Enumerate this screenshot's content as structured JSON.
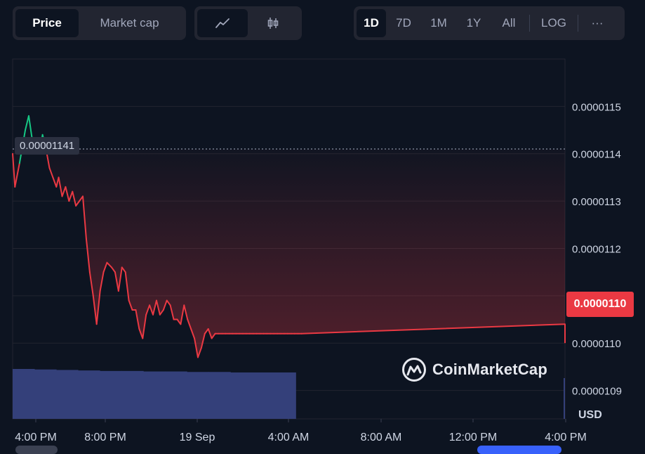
{
  "toolbar": {
    "metric_tabs": [
      {
        "label": "Price",
        "active": true
      },
      {
        "label": "Market cap",
        "active": false
      }
    ],
    "chart_style_buttons": [
      {
        "icon": "line-chart-icon",
        "active": true
      },
      {
        "icon": "candlestick-icon",
        "active": false
      }
    ],
    "ranges": [
      "1D",
      "7D",
      "1M",
      "1Y",
      "All"
    ],
    "active_range": "1D",
    "log_label": "LOG",
    "more_label": "···"
  },
  "overlay": {
    "hover_value": "0.00001141",
    "current_price": "0.0000110",
    "currency": "USD",
    "watermark": "CoinMarketCap"
  },
  "colors": {
    "down": "#ea3943",
    "up": "#16c784",
    "volume": "#34407a",
    "grid": "#222531",
    "background": "#0d1421"
  },
  "chart_data": {
    "type": "line",
    "title": "",
    "xlabel": "",
    "ylabel": "",
    "y_ticks": [
      "0.0000115",
      "0.0000114",
      "0.0000113",
      "0.0000112",
      "0.0000111",
      "0.0000110",
      "0.0000109"
    ],
    "y_tick_values": [
      1.15e-05,
      1.14e-05,
      1.13e-05,
      1.12e-05,
      1.11e-05,
      1.1e-05,
      1.09e-05
    ],
    "ylim": [
      1.084e-05,
      1.16e-05
    ],
    "x_ticks": [
      "4:00 PM",
      "8:00 PM",
      "19 Sep",
      "4:00 AM",
      "8:00 AM",
      "12:00 PM",
      "4:00 PM"
    ],
    "x_tick_hours": [
      0,
      4,
      8,
      12,
      16,
      20,
      24
    ],
    "xlim_hours": [
      0,
      24
    ],
    "reference_value": 1.141e-05,
    "grid": true,
    "series": [
      {
        "x_hours": [
          -0.1,
          0.1,
          0.3,
          0.55,
          0.7,
          0.85,
          1.0,
          1.15,
          1.3,
          1.45,
          1.6,
          1.75,
          1.9,
          2.0,
          2.15,
          2.3,
          2.45,
          2.6,
          2.75,
          2.9,
          3.05,
          3.2,
          3.35,
          3.5,
          3.65,
          3.8,
          3.95,
          4.1,
          4.3,
          4.45,
          4.6,
          4.75,
          4.9,
          5.05,
          5.2,
          5.35,
          5.5,
          5.65,
          5.8,
          5.95,
          6.1,
          6.25,
          6.4,
          6.55,
          6.7,
          6.85,
          7.0,
          7.15,
          7.3,
          7.45,
          7.6,
          7.75,
          7.9,
          8.05,
          8.2,
          8.35,
          8.5,
          8.65,
          8.8,
          8.95,
          9.1,
          9.25,
          9.4,
          9.55,
          9.7,
          9.85,
          10.0,
          10.15,
          10.3,
          10.45,
          10.6,
          10.75,
          10.9,
          11.05,
          11.2,
          11.35,
          11.5,
          11.65,
          11.8,
          11.95,
          12.1,
          12.25,
          12.4,
          12.55,
          24.0
        ],
        "values": [
          1.14e-05,
          1.133e-05,
          1.138e-05,
          1.145e-05,
          1.148e-05,
          1.143e-05,
          1.142e-05,
          1.14e-05,
          1.144e-05,
          1.141e-05,
          1.137e-05,
          1.135e-05,
          1.133e-05,
          1.135e-05,
          1.131e-05,
          1.133e-05,
          1.13e-05,
          1.132e-05,
          1.129e-05,
          1.13e-05,
          1.131e-05,
          1.122e-05,
          1.115e-05,
          1.11e-05,
          1.104e-05,
          1.111e-05,
          1.115e-05,
          1.117e-05,
          1.116e-05,
          1.115e-05,
          1.111e-05,
          1.116e-05,
          1.115e-05,
          1.109e-05,
          1.107e-05,
          1.107e-05,
          1.103e-05,
          1.101e-05,
          1.106e-05,
          1.108e-05,
          1.106e-05,
          1.109e-05,
          1.106e-05,
          1.107e-05,
          1.109e-05,
          1.108e-05,
          1.105e-05,
          1.105e-05,
          1.104e-05,
          1.108e-05,
          1.105e-05,
          1.103e-05,
          1.101e-05,
          1.097e-05,
          1.099e-05,
          1.102e-05,
          1.103e-05,
          1.101e-05,
          1.102e-05,
          1.102e-05,
          1.102e-05,
          1.102e-05,
          1.102e-05,
          1.102e-05,
          1.102e-05,
          1.102e-05,
          1.102e-05,
          1.102e-05,
          1.102e-05,
          1.102e-05,
          1.102e-05,
          1.102e-05,
          1.102e-05,
          1.102e-05,
          1.102e-05,
          1.102e-05,
          1.102e-05,
          1.102e-05,
          1.102e-05,
          1.102e-05,
          1.102e-05,
          1.102e-05,
          1.102e-05,
          1.102e-05,
          1.104e-05
        ]
      }
    ],
    "volume": {
      "x_hours_start": 0,
      "x_hours_end": 12.3,
      "relative_levels": [
        1.0,
        0.99,
        0.98,
        0.97,
        0.96,
        0.96,
        0.95,
        0.95,
        0.94,
        0.94,
        0.93,
        0.93,
        0.93
      ]
    }
  }
}
